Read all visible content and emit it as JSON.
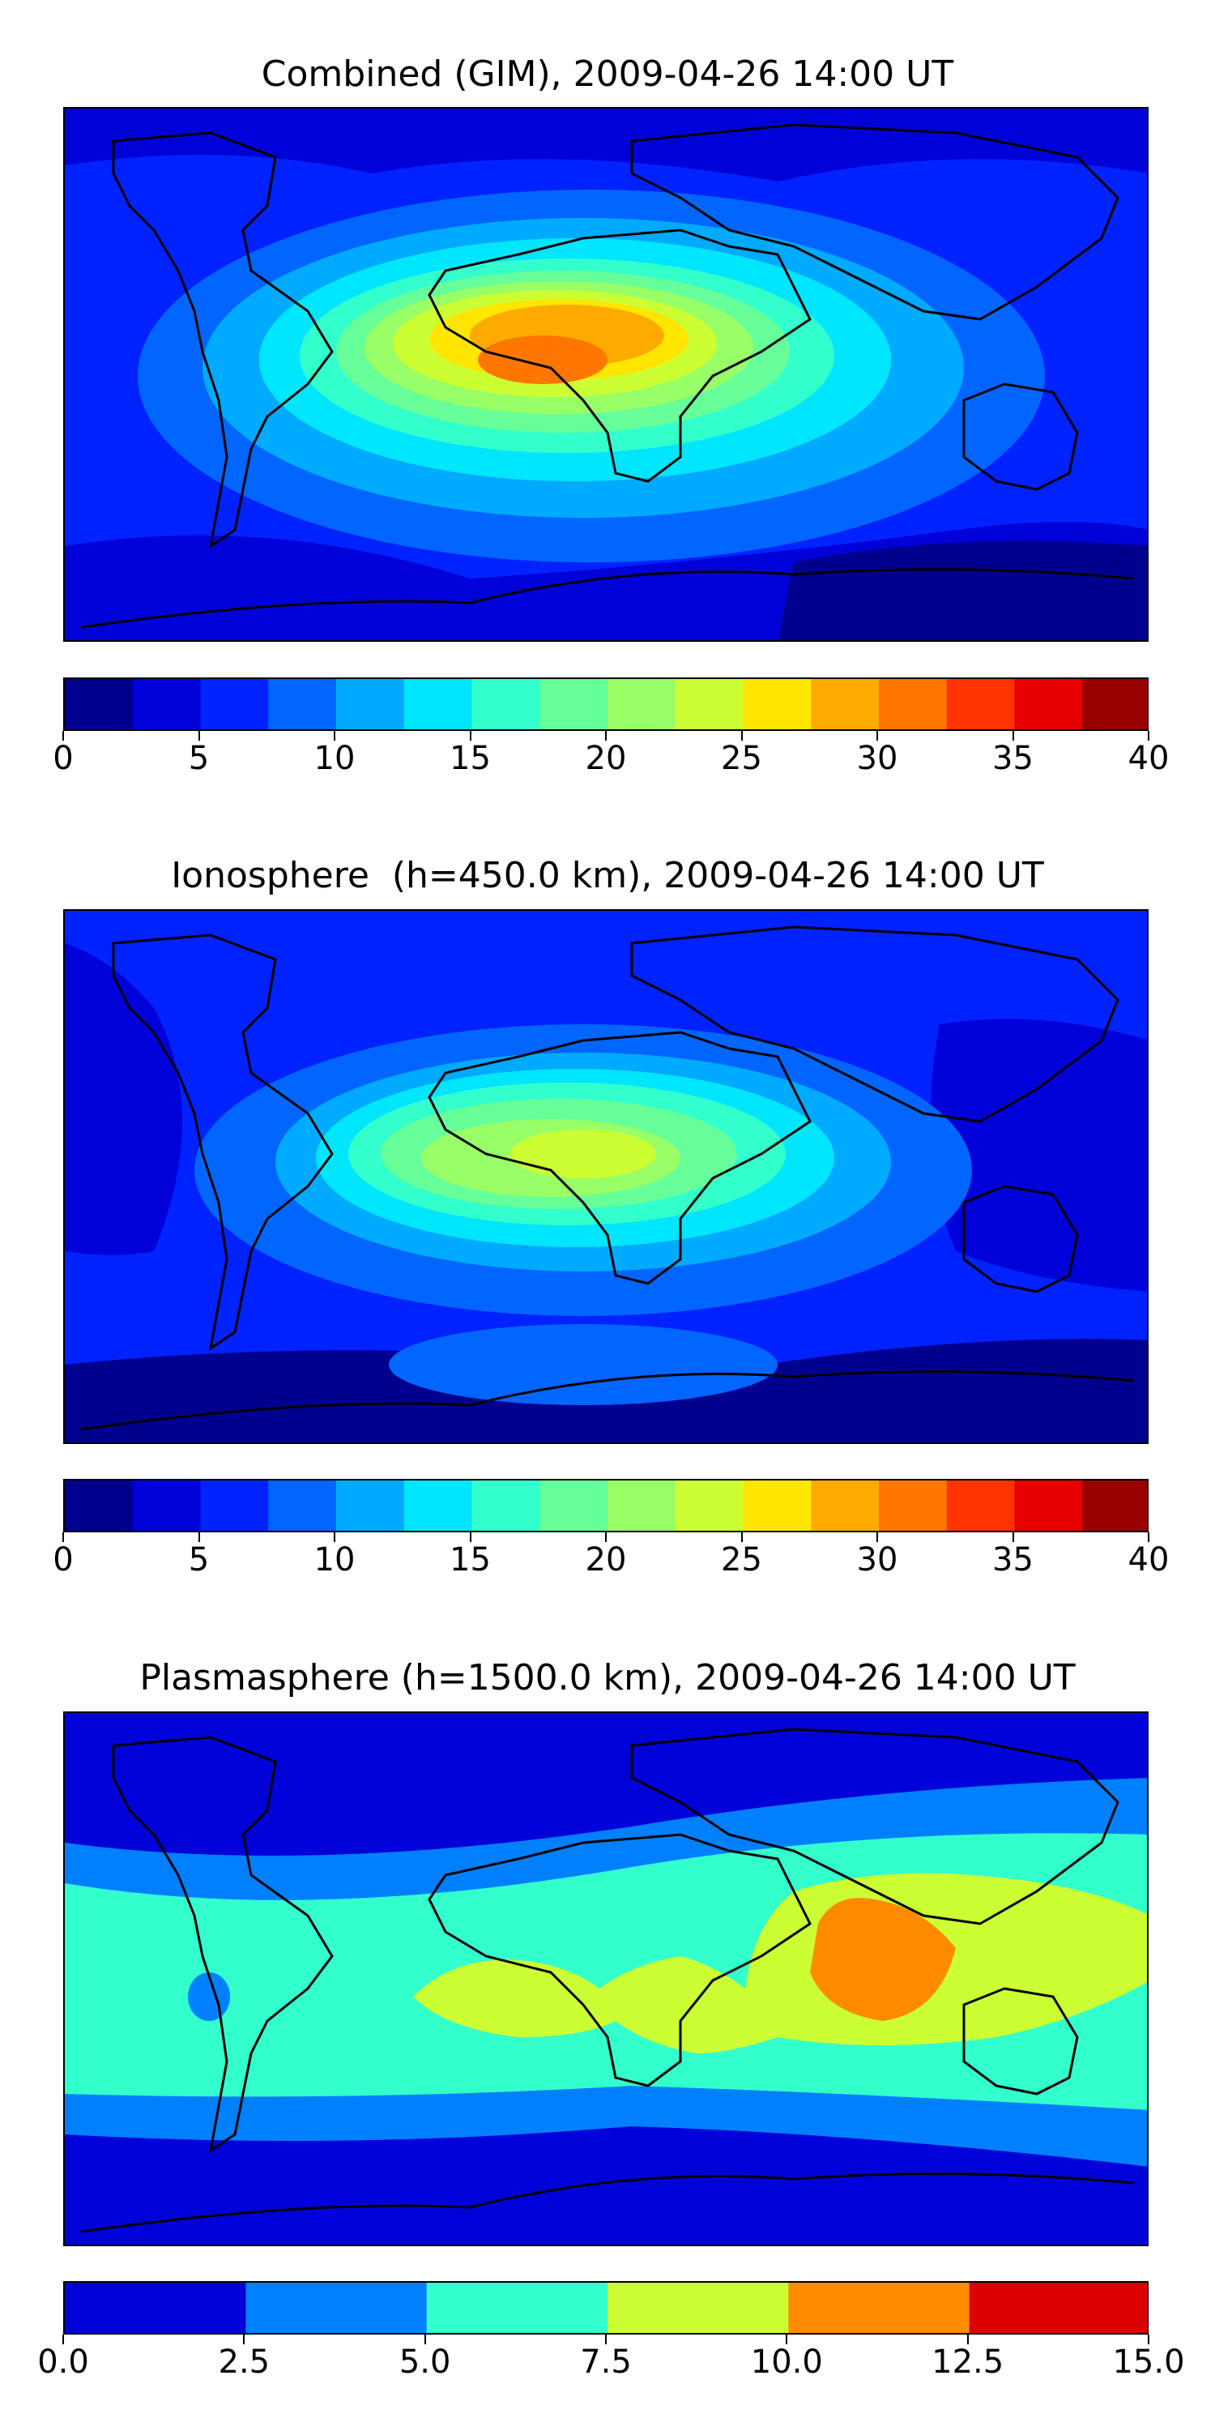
{
  "chart_data": [
    {
      "type": "heatmap",
      "title": "Combined (GIM), 2009-04-26 14:00 UT",
      "xlabel": "",
      "ylabel": "",
      "colorbar": {
        "levels": [
          0,
          2.5,
          5,
          7.5,
          10,
          12.5,
          15,
          17.5,
          20,
          22.5,
          25,
          27.5,
          30,
          32.5,
          35,
          37.5,
          40
        ],
        "colors": [
          "#00008f",
          "#0000d8",
          "#0022ff",
          "#0066ff",
          "#00aaff",
          "#00e6ff",
          "#33ffcc",
          "#66ff99",
          "#99ff66",
          "#ccff33",
          "#ffe600",
          "#ffaa00",
          "#ff7700",
          "#ff3300",
          "#e60000",
          "#990000"
        ],
        "tick_values": [
          0,
          5,
          10,
          15,
          20,
          25,
          30,
          35,
          40
        ],
        "tick_labels": [
          "0",
          "5",
          "10",
          "15",
          "20",
          "25",
          "30",
          "35",
          "40"
        ]
      },
      "features": [
        {
          "region": "South Atlantic / Central Africa",
          "approx_max": 32.5
        }
      ]
    },
    {
      "type": "heatmap",
      "title": "Ionosphere  (h=450.0 km), 2009-04-26 14:00 UT",
      "xlabel": "",
      "ylabel": "",
      "colorbar": {
        "levels": [
          0,
          2.5,
          5,
          7.5,
          10,
          12.5,
          15,
          17.5,
          20,
          22.5,
          25,
          27.5,
          30,
          32.5,
          35,
          37.5,
          40
        ],
        "colors": [
          "#00008f",
          "#0000d8",
          "#0022ff",
          "#0066ff",
          "#00aaff",
          "#00e6ff",
          "#33ffcc",
          "#66ff99",
          "#99ff66",
          "#ccff33",
          "#ffe600",
          "#ffaa00",
          "#ff7700",
          "#ff3300",
          "#e60000",
          "#990000"
        ],
        "tick_values": [
          0,
          5,
          10,
          15,
          20,
          25,
          30,
          35,
          40
        ],
        "tick_labels": [
          "0",
          "5",
          "10",
          "15",
          "20",
          "25",
          "30",
          "35",
          "40"
        ]
      },
      "features": [
        {
          "region": "Central Africa",
          "approx_max": 25
        }
      ]
    },
    {
      "type": "heatmap",
      "title": "Plasmasphere (h=1500.0 km), 2009-04-26 14:00 UT",
      "xlabel": "",
      "ylabel": "",
      "colorbar": {
        "levels": [
          0,
          2.5,
          5,
          7.5,
          10,
          12.5,
          15
        ],
        "colors": [
          "#0000d8",
          "#0080ff",
          "#33ffcc",
          "#ccff33",
          "#ff8c00",
          "#dd0000"
        ],
        "tick_values": [
          0,
          2.5,
          5,
          7.5,
          10,
          12.5,
          15
        ],
        "tick_labels": [
          "0.0",
          "2.5",
          "5.0",
          "7.5",
          "10.0",
          "12.5",
          "15.0"
        ]
      },
      "features": [
        {
          "region": "Indian Ocean",
          "approx_max": 12.5
        }
      ]
    }
  ]
}
